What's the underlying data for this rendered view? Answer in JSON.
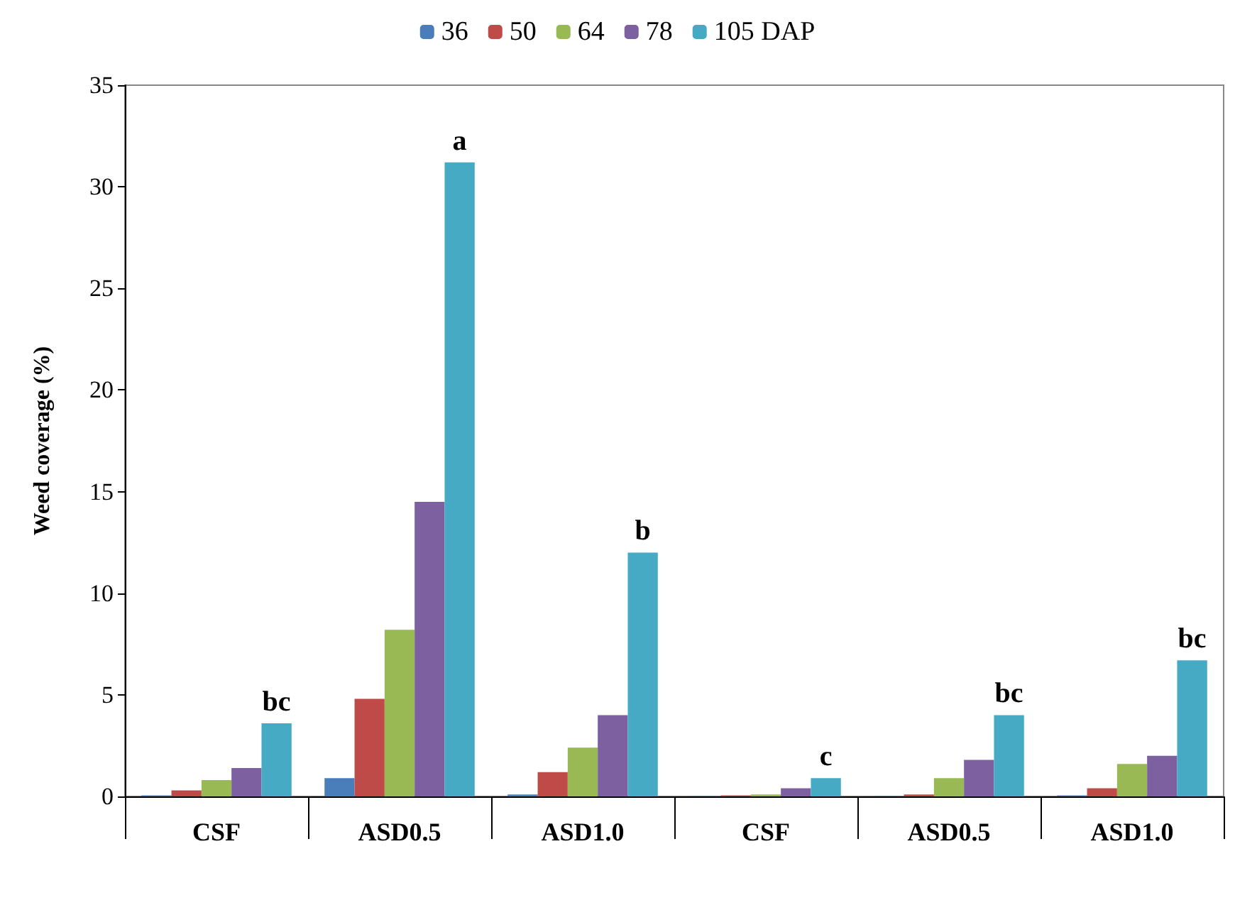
{
  "chart_data": {
    "type": "bar",
    "ylabel": "Weed coverage (%)",
    "categories": [
      "CSF",
      "ASD0.5",
      "ASD1.0",
      "CSF",
      "ASD0.5",
      "ASD1.0"
    ],
    "series": [
      {
        "name": "36",
        "color": "#4a7ebb",
        "values": [
          0.05,
          0.9,
          0.1,
          0.02,
          0.02,
          0.05
        ]
      },
      {
        "name": "50",
        "color": "#be4b48",
        "values": [
          0.3,
          4.8,
          1.2,
          0.05,
          0.1,
          0.4
        ]
      },
      {
        "name": "64",
        "color": "#98b954",
        "values": [
          0.8,
          8.2,
          2.4,
          0.1,
          0.9,
          1.6
        ]
      },
      {
        "name": "78",
        "color": "#7d60a0",
        "values": [
          1.4,
          14.5,
          4.0,
          0.4,
          1.8,
          2.0
        ]
      },
      {
        "name": "105 DAP",
        "color": "#46aac5",
        "values": [
          3.6,
          31.2,
          12.0,
          0.9,
          4.0,
          6.7
        ],
        "value_labels": [
          "bc",
          "a",
          "b",
          "c",
          "bc",
          "bc"
        ]
      }
    ],
    "ylim": [
      0,
      35
    ],
    "yticks": [
      0,
      5,
      10,
      15,
      20,
      25,
      30,
      35
    ],
    "grid": false,
    "legend": "top"
  }
}
